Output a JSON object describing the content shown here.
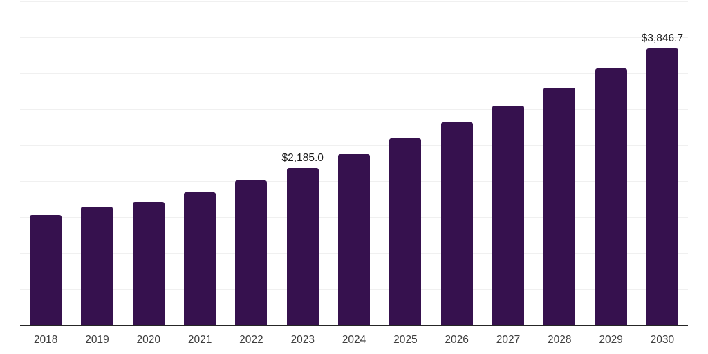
{
  "chart_data": {
    "type": "bar",
    "title": "",
    "xlabel": "",
    "ylabel": "",
    "categories": [
      "2018",
      "2019",
      "2020",
      "2021",
      "2022",
      "2023",
      "2024",
      "2025",
      "2026",
      "2027",
      "2028",
      "2029",
      "2030"
    ],
    "values": [
      1528,
      1643,
      1714,
      1848,
      2006,
      2185.0,
      2376,
      2597,
      2814,
      3048,
      3300,
      3566,
      3846.7
    ],
    "point_labels": [
      "",
      "",
      "",
      "",
      "",
      "$2,185.0",
      "",
      "",
      "",
      "",
      "",
      "",
      "$3,846.7"
    ],
    "ylim": [
      0,
      4500
    ],
    "gridline_step": 500,
    "grid": true,
    "y_axis_tick_labels_visible": false,
    "legend": "none",
    "colors": {
      "bar": "#36114E",
      "axis_line": "#262626",
      "gridline": "#F0F0F0",
      "data_label_text": "#1A1A1A",
      "tick_label_text": "#3D3D3D",
      "background": "#FFFFFF"
    }
  }
}
